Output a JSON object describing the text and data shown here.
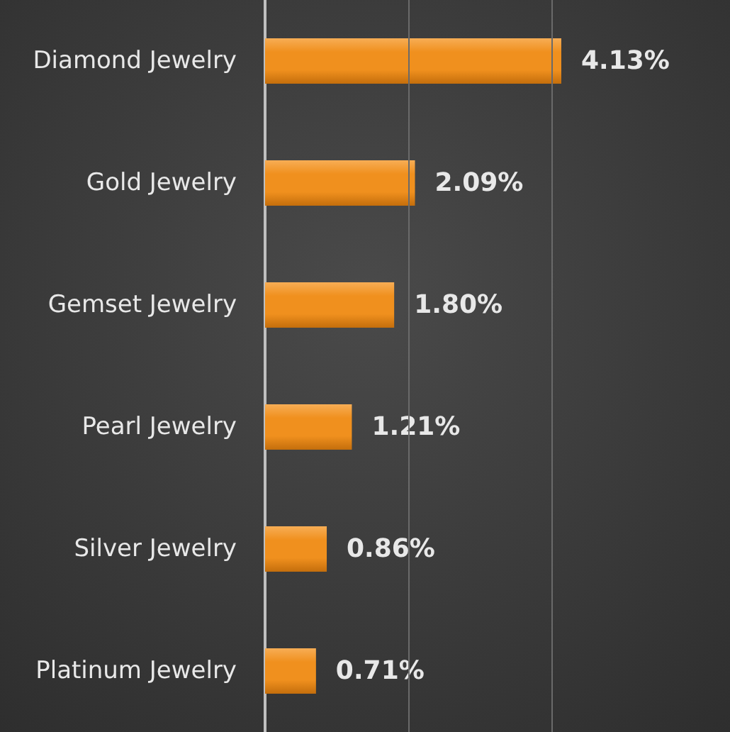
{
  "chart_data": {
    "type": "bar",
    "orientation": "horizontal",
    "categories": [
      "Diamond Jewelry",
      "Gold Jewelry",
      "Gemset Jewelry",
      "Pearl Jewelry",
      "Silver Jewelry",
      "Platinum Jewelry"
    ],
    "values": [
      4.13,
      2.09,
      1.8,
      1.21,
      0.86,
      0.71
    ],
    "value_labels": [
      "4.13%",
      "2.09%",
      "1.80%",
      "1.21%",
      "0.86%",
      "0.71%"
    ],
    "color": "#f0901e",
    "ref_lines": [
      {
        "axis": "x",
        "value": 2,
        "color": "#6a6a6a"
      },
      {
        "axis": "x",
        "value": 4,
        "color": "#6a6a6a"
      }
    ],
    "tick_labels": "y"
  }
}
